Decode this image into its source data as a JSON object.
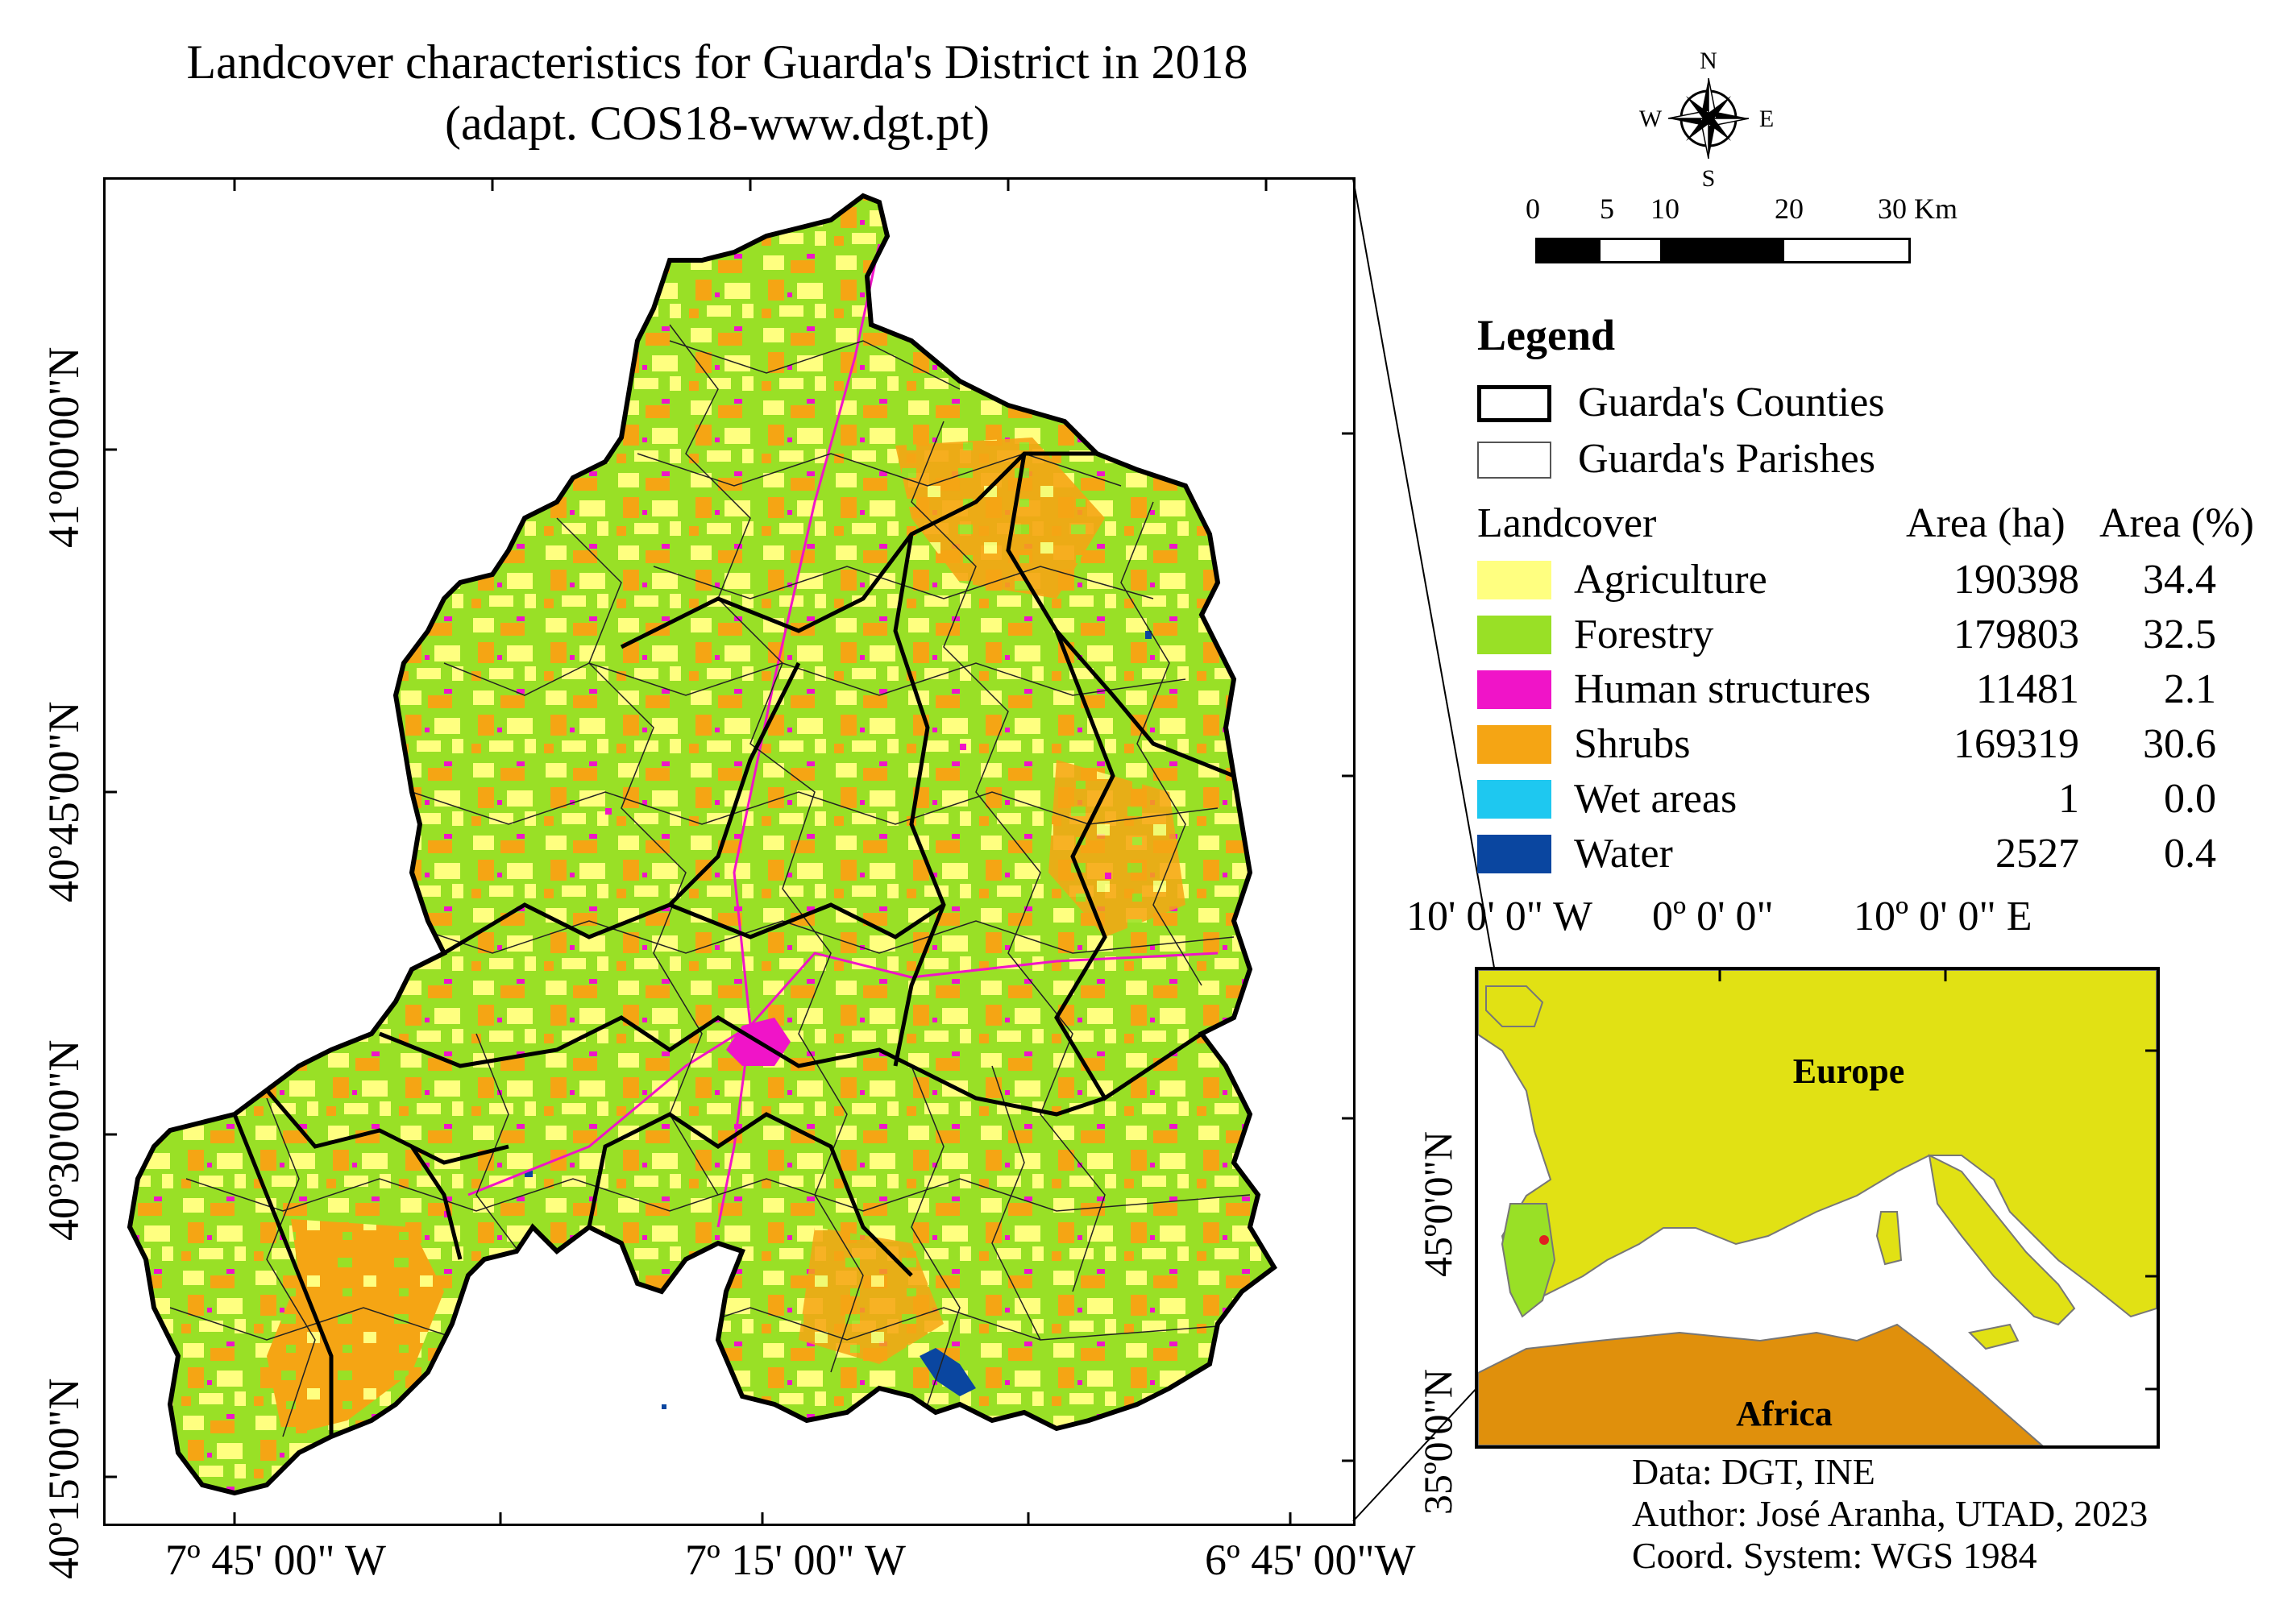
{
  "title": {
    "line1": "Landcover characteristics for Guarda's District in 2018",
    "line2": "(adapt. COS18-www.dgt.pt)"
  },
  "main_map": {
    "lon_labels": [
      "7º 45' 00\" W",
      "7º 15' 00\" W",
      "6º 45' 00\"W"
    ],
    "lat_labels": [
      "41º00'00\"N",
      "40º45'00\"N",
      "40º30'00\"N",
      "40º15'00\"N"
    ]
  },
  "north_arrow": {
    "n": "N",
    "s": "S",
    "e": "E",
    "w": "W"
  },
  "scale": {
    "labels": [
      "0",
      "5",
      "10",
      "20",
      "30 Km"
    ]
  },
  "legend": {
    "title": "Legend",
    "counties": "Guarda's Counties",
    "parishes": "Guarda's Parishes",
    "header": {
      "landcover": "Landcover",
      "area_ha": "Area (ha)",
      "area_pct": "Area (%)"
    },
    "classes": [
      {
        "name": "Agriculture",
        "ha": "190398",
        "pct": "34.4",
        "color": "#FFFF80"
      },
      {
        "name": "Forestry",
        "ha": "179803",
        "pct": "32.5",
        "color": "#99E026"
      },
      {
        "name": "Human structures",
        "ha": "11481",
        "pct": "2.1",
        "color": "#F014C8"
      },
      {
        "name": "Shrubs",
        "ha": "169319",
        "pct": "30.6",
        "color": "#F5A514"
      },
      {
        "name": "Wet areas",
        "ha": "1",
        "pct": "0.0",
        "color": "#1EC8F0"
      },
      {
        "name": "Water",
        "ha": "2527",
        "pct": "0.4",
        "color": "#0A46A0"
      }
    ]
  },
  "inset": {
    "lon_labels": [
      "10' 0' 0\" W",
      "0º 0' 0\"",
      "10º 0' 0\" E"
    ],
    "lat_labels": [
      "45º0'0\"N",
      "35º0'0\"N"
    ],
    "europe": "Europe",
    "africa": "Africa",
    "colors": {
      "europe": "#E1E114",
      "africa": "#E0900C",
      "iberia_portugal": "#99E026",
      "sea": "#ffffff"
    }
  },
  "credits": {
    "data": "Data: DGT, INE",
    "author": "Author: José Aranha, UTAD, 2023",
    "coord": "Coord. System: WGS 1984"
  }
}
